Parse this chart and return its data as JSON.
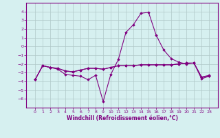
{
  "xlabel": "Windchill (Refroidissement éolien,°C)",
  "x": [
    0,
    1,
    2,
    3,
    4,
    5,
    6,
    7,
    8,
    9,
    10,
    11,
    12,
    13,
    14,
    15,
    16,
    17,
    18,
    19,
    20,
    21,
    22,
    23
  ],
  "line1": [
    -3.8,
    -2.2,
    -2.4,
    -2.6,
    -3.2,
    -3.3,
    -3.4,
    -3.8,
    -3.3,
    -6.3,
    -3.2,
    -1.5,
    1.6,
    2.5,
    3.8,
    3.9,
    1.3,
    -0.4,
    -1.4,
    -1.8,
    -2.0,
    -1.9,
    -3.5,
    -3.3
  ],
  "line2": [
    -3.8,
    -2.2,
    -2.4,
    -2.5,
    -2.8,
    -2.9,
    -2.7,
    -2.5,
    -2.5,
    -2.6,
    -2.4,
    -2.2,
    -2.2,
    -2.2,
    -2.1,
    -2.1,
    -2.1,
    -2.1,
    -2.1,
    -2.0,
    -1.9,
    -1.9,
    -3.5,
    -3.4
  ],
  "line3": [
    -3.8,
    -2.2,
    -2.4,
    -2.5,
    -2.8,
    -2.9,
    -2.7,
    -2.5,
    -2.5,
    -2.6,
    -2.4,
    -2.2,
    -2.2,
    -2.2,
    -2.1,
    -2.1,
    -2.1,
    -2.1,
    -2.1,
    -2.0,
    -1.9,
    -1.9,
    -3.7,
    -3.4
  ],
  "line_color": "#800080",
  "bg_color": "#d6f0f0",
  "grid_color": "#b0c8c8",
  "ylim": [
    -7,
    5
  ],
  "yticks": [
    -6,
    -5,
    -4,
    -3,
    -2,
    -1,
    0,
    1,
    2,
    3,
    4
  ],
  "xticks": [
    0,
    1,
    2,
    3,
    4,
    5,
    6,
    7,
    8,
    9,
    10,
    11,
    12,
    13,
    14,
    15,
    16,
    17,
    18,
    19,
    20,
    21,
    22,
    23
  ],
  "marker": "D",
  "markersize": 1.8,
  "linewidth": 0.8,
  "tick_fontsize": 4.5,
  "xlabel_fontsize": 5.5
}
